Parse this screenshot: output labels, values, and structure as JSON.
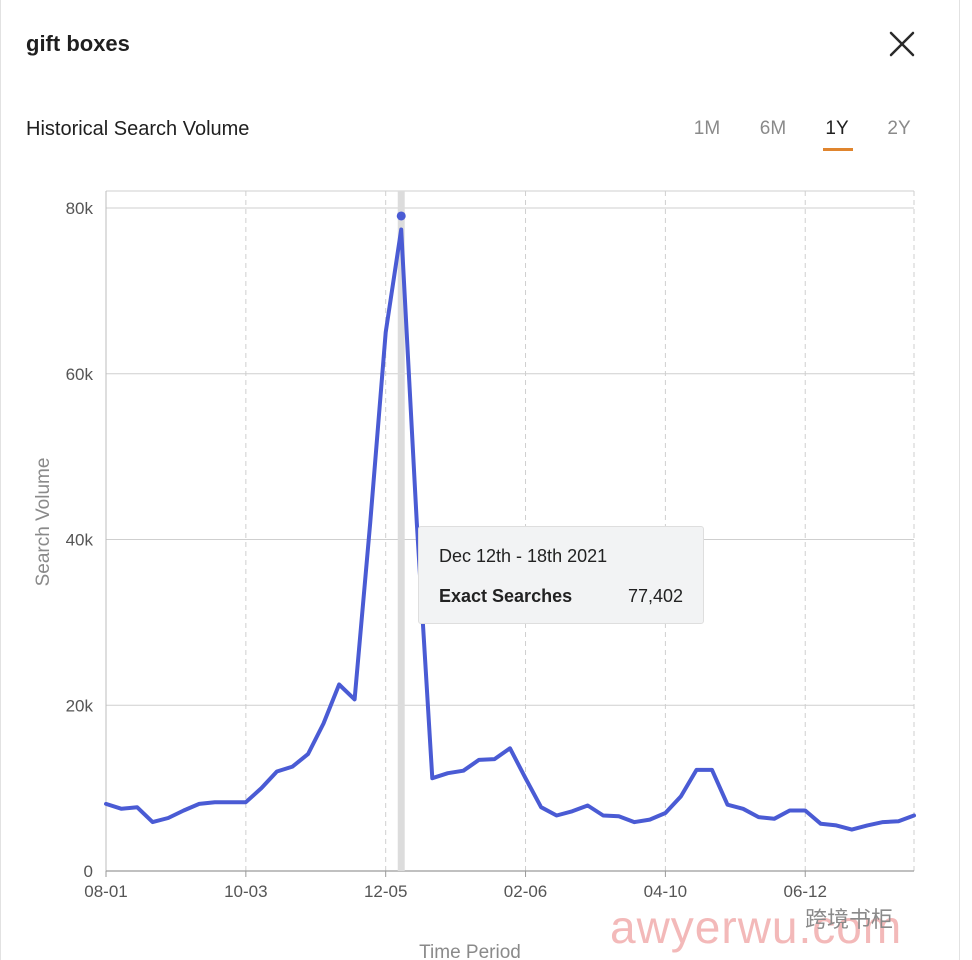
{
  "header": {
    "title": "gift boxes"
  },
  "section": {
    "title": "Historical Search Volume"
  },
  "ranges": [
    {
      "label": "1M",
      "active": false
    },
    {
      "label": "6M",
      "active": false
    },
    {
      "label": "1Y",
      "active": true
    },
    {
      "label": "2Y",
      "active": false
    }
  ],
  "colors": {
    "line": "#4a5bd4",
    "accent": "#e0852e",
    "grid": "#cfcfcf",
    "hover": "#dcdcdc"
  },
  "tooltip": {
    "date": "Dec 12th - 18th 2021",
    "label": "Exact Searches",
    "value": "77,402"
  },
  "watermark": {
    "text": "awyerwu.com",
    "badge": "跨境书柜"
  },
  "chart_data": {
    "type": "line",
    "title": "",
    "xlabel": "Time Period",
    "ylabel": "Search Volume",
    "ylim": [
      0,
      80000
    ],
    "yticks": [
      0,
      20000,
      40000,
      60000,
      80000
    ],
    "ytick_labels": [
      "0",
      "20k",
      "40k",
      "60k",
      "80k"
    ],
    "xtick_labels": [
      "08-01",
      "10-03",
      "12-05",
      "02-06",
      "04-10",
      "06-12"
    ],
    "xtick_index": [
      0,
      9,
      18,
      27,
      36,
      45
    ],
    "grid": true,
    "highlight_index": 19,
    "series": [
      {
        "name": "Exact Searches",
        "values": [
          8100,
          7500,
          7700,
          5900,
          6400,
          7300,
          8100,
          8300,
          8300,
          8300,
          10000,
          12000,
          12600,
          14100,
          17800,
          22500,
          20700,
          42000,
          65000,
          77402,
          42000,
          11200,
          11800,
          12100,
          13400,
          13500,
          14800,
          11200,
          7700,
          6700,
          7200,
          7900,
          6700,
          6600,
          5900,
          6200,
          7000,
          9000,
          12200,
          12200,
          8000,
          7500,
          6500,
          6300,
          7300,
          7300,
          5700,
          5500,
          5000,
          5500,
          5900,
          6000,
          6700
        ]
      }
    ]
  }
}
